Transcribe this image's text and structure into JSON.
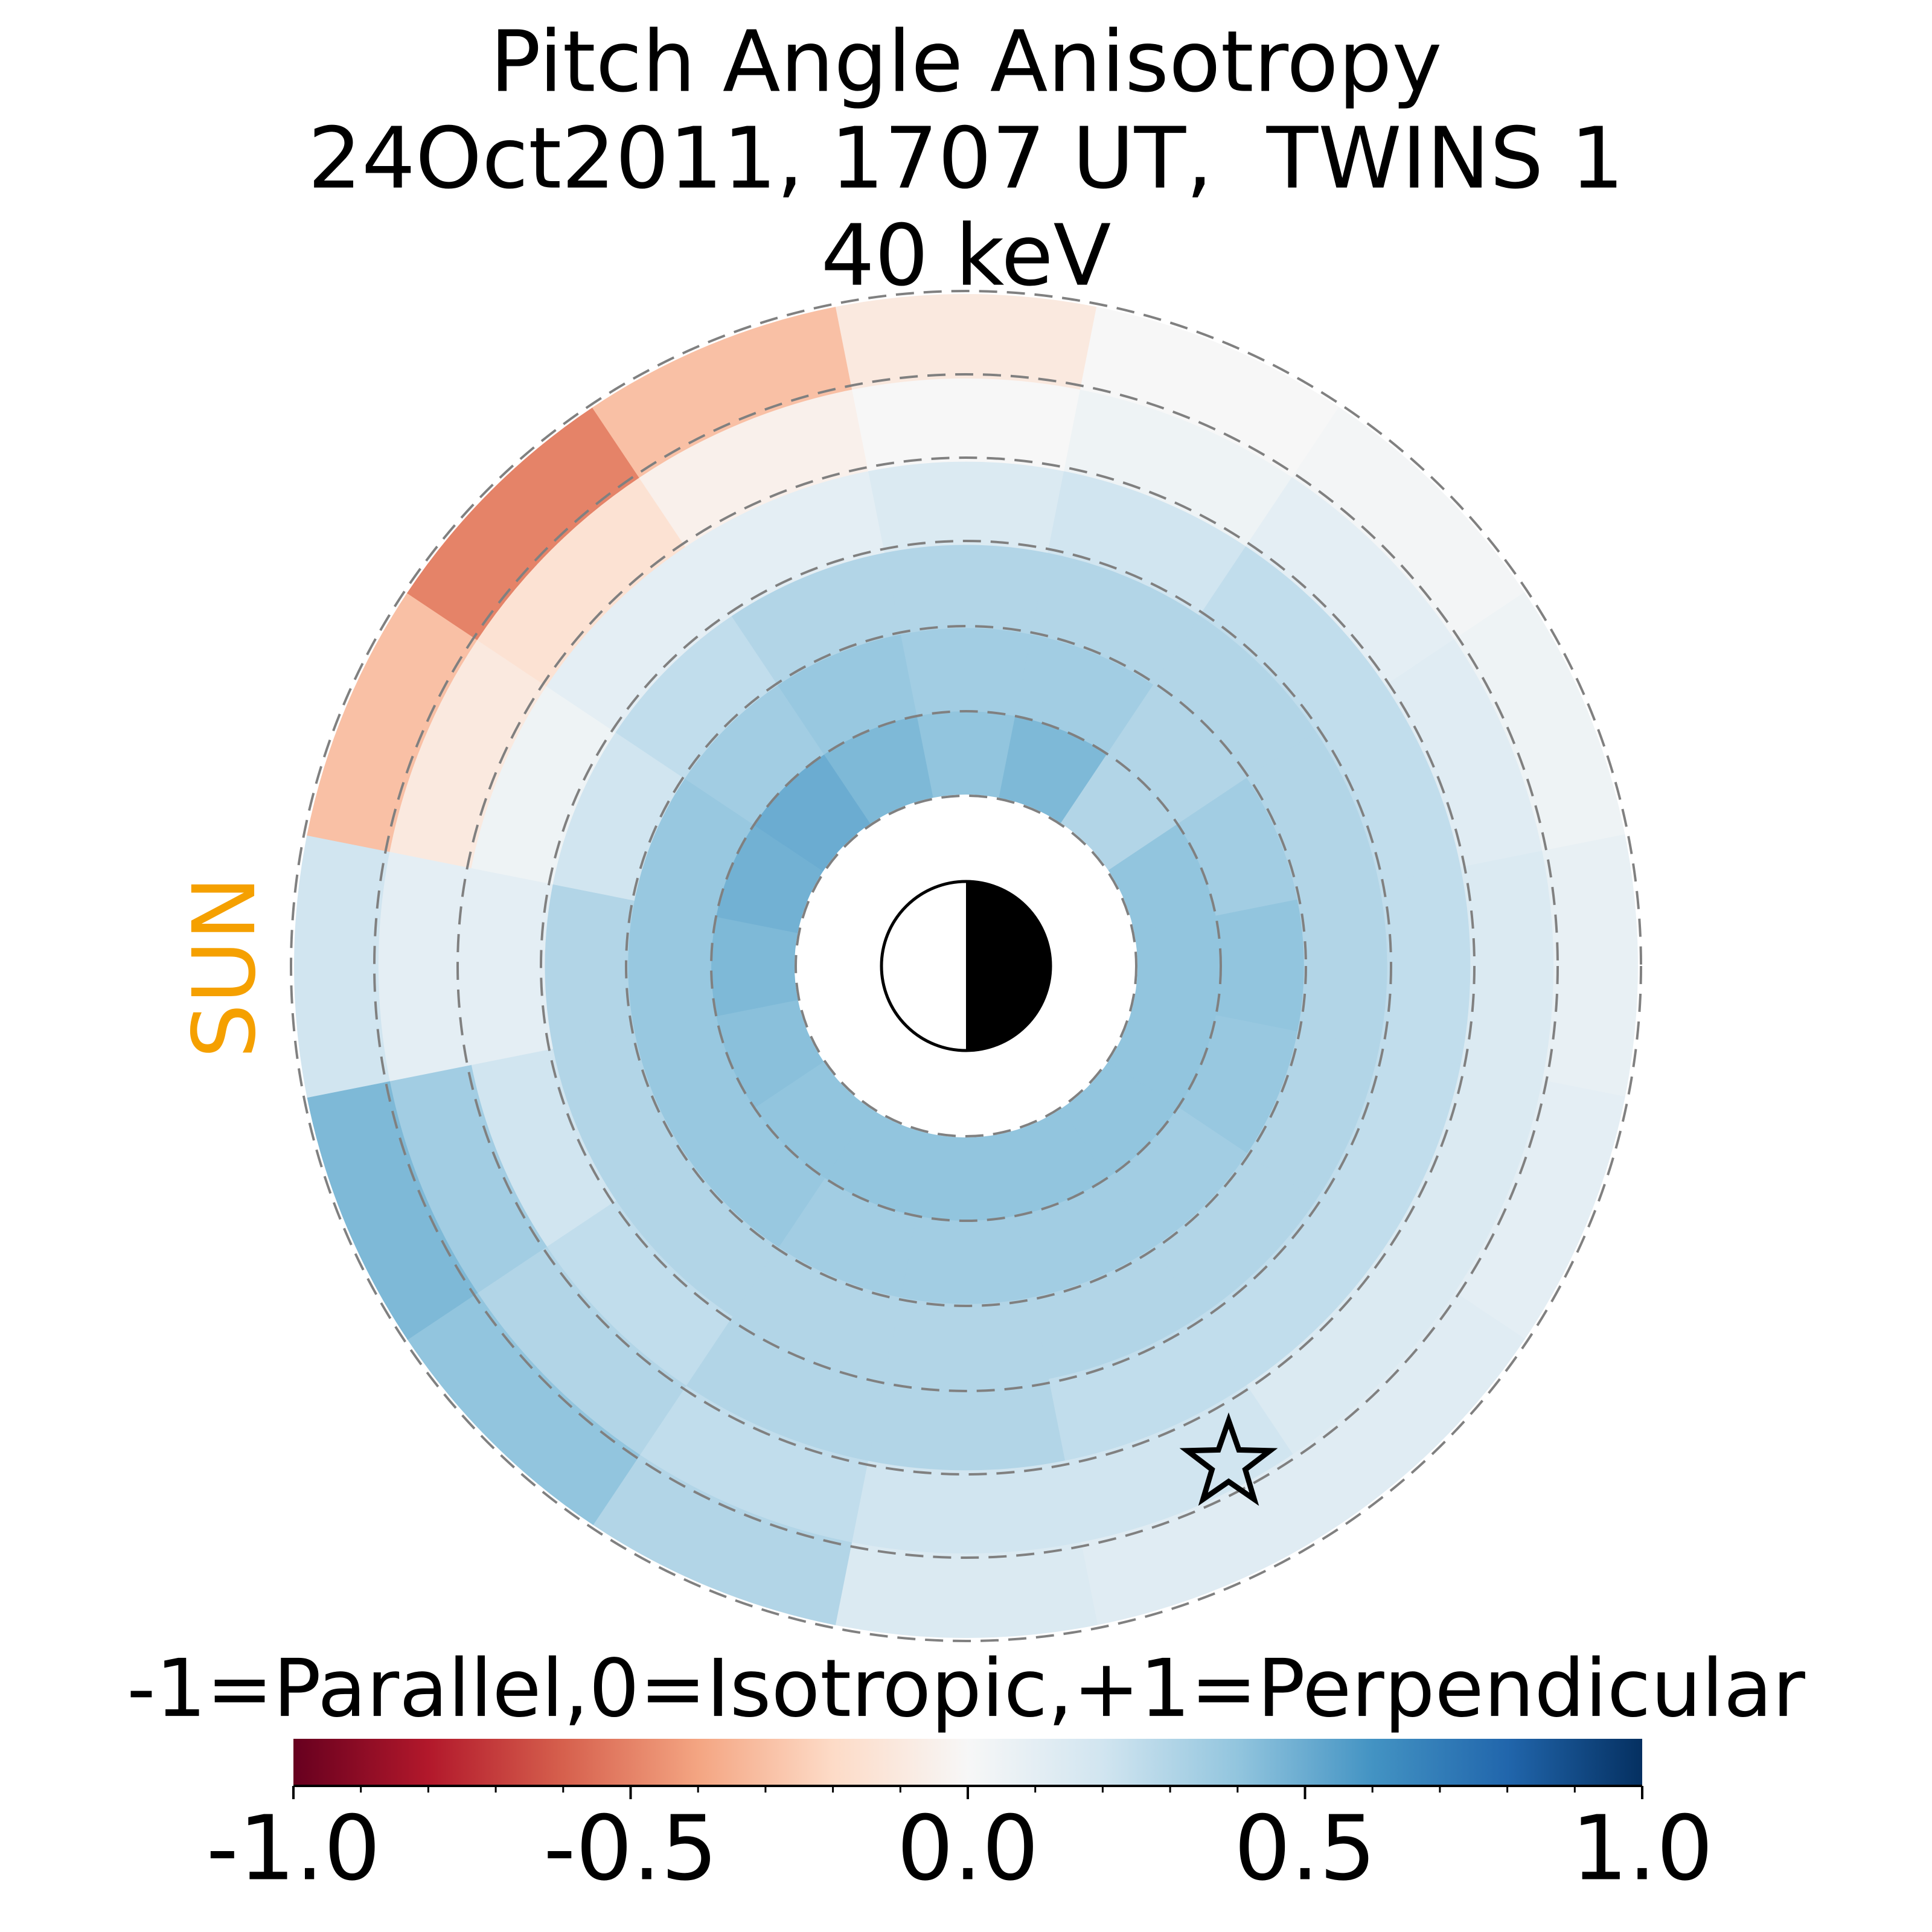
{
  "chart_data": {
    "type": "heatmap",
    "title": [
      "Pitch Angle Anisotropy",
      "24Oct2011, 1707 UT,  TWINS 1",
      "40 keV"
    ],
    "annotation": "SUN",
    "annotation_color": "#f5a000",
    "values": [
      [
        0.4,
        0.45,
        0.3,
        0.4,
        0.4,
        0.4,
        0.4,
        0.4,
        0.4,
        0.4,
        0.4,
        0.42,
        0.45,
        0.48,
        0.5,
        0.45
      ],
      [
        0.35,
        0.35,
        0.3,
        0.35,
        0.4,
        0.38,
        0.35,
        0.35,
        0.35,
        0.35,
        0.38,
        0.38,
        0.38,
        0.38,
        0.35,
        0.38
      ],
      [
        0.3,
        0.3,
        0.3,
        0.3,
        0.3,
        0.3,
        0.3,
        0.3,
        0.3,
        0.3,
        0.3,
        0.3,
        0.3,
        0.2,
        0.25,
        0.3
      ],
      [
        0.15,
        0.2,
        0.25,
        0.25,
        0.25,
        0.25,
        0.25,
        0.25,
        0.3,
        0.3,
        0.25,
        0.2,
        0.1,
        0.05,
        0.1,
        0.1
      ],
      [
        0.0,
        0.05,
        0.1,
        0.12,
        0.15,
        0.15,
        0.15,
        0.2,
        0.2,
        0.25,
        0.3,
        0.35,
        0.1,
        -0.1,
        -0.15,
        -0.05
      ],
      [
        -0.1,
        0.0,
        0.02,
        0.05,
        0.08,
        0.1,
        0.12,
        0.12,
        0.15,
        0.3,
        0.4,
        0.45,
        0.2,
        -0.3,
        -0.5,
        -0.3
      ]
    ],
    "colorbar": {
      "label": "-1=Parallel,0=Isotropic,+1=Perpendicular",
      "lim": [
        -1,
        1
      ],
      "ticks": [
        {
          "value": -1,
          "label": "-1.0"
        },
        -0.5,
        {
          "value": 0,
          "label": "0.0"
        },
        0.5,
        {
          "value": 1,
          "label": "1.0"
        }
      ],
      "minor_ticks": [
        -0.9,
        -0.8,
        -0.7,
        -0.6,
        -0.4,
        -0.3,
        -0.2,
        -0.1,
        0.1,
        0.2,
        0.3,
        0.4,
        0.6,
        0.7,
        0.8,
        0.9
      ],
      "colors": [
        "#67001f",
        "#b2182b",
        "#d6604d",
        "#f4a582",
        "#fddbc7",
        "#f7f7f7",
        "#d1e5f0",
        "#92c5de",
        "#4393c3",
        "#2166ac",
        "#053061"
      ]
    }
  }
}
